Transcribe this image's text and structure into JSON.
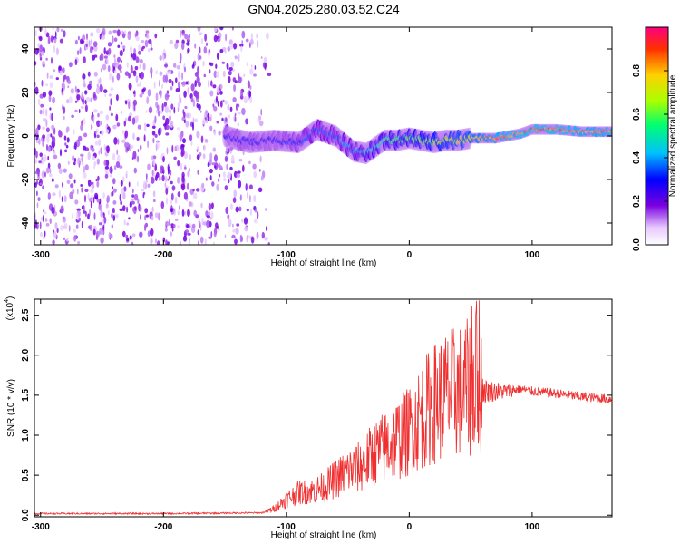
{
  "title": "GN04.2025.280.03.52.C24",
  "chart_data": [
    {
      "type": "heatmap",
      "xlabel": "Height of straight line (km)",
      "ylabel": "Frequency (Hz)",
      "xlim": [
        -305,
        165
      ],
      "ylim": [
        -50,
        50
      ],
      "x_ticks": [
        -300,
        -200,
        -100,
        0,
        100
      ],
      "y_ticks": [
        -40,
        -20,
        0,
        20,
        40
      ],
      "colorbar": {
        "label": "Normalized spectral amplitude",
        "range": [
          0.0,
          1.0
        ],
        "ticks": [
          "0.0",
          "0.2",
          "0.4",
          "0.6",
          "0.8"
        ],
        "colors": [
          "#ffffff",
          "#e6c8ff",
          "#7a00e0",
          "#0000ff",
          "#00c0ff",
          "#00ff70",
          "#aaff00",
          "#ffd000",
          "#ff3000",
          "#ff0080"
        ]
      },
      "ridge": {
        "description_free_values": true,
        "x": [
          -150,
          -130,
          -110,
          -90,
          -75,
          -60,
          -45,
          -35,
          -20,
          -10,
          0,
          10,
          20,
          30,
          40,
          50,
          60,
          70,
          80,
          90,
          100,
          120,
          140,
          165
        ],
        "frequency": [
          0,
          -3,
          -2,
          -3,
          3,
          0,
          -7,
          -8,
          -2,
          -2,
          -1,
          -2,
          -3,
          -2,
          -2,
          -1,
          -1,
          -1,
          0,
          1,
          3,
          3,
          2,
          2
        ],
        "amplitude": [
          0.3,
          0.32,
          0.3,
          0.35,
          0.4,
          0.38,
          0.45,
          0.5,
          0.55,
          0.6,
          0.62,
          0.65,
          0.7,
          0.72,
          0.75,
          0.8,
          0.85,
          0.9,
          0.92,
          0.95,
          0.97,
          0.96,
          0.9,
          0.92
        ]
      },
      "noise_region_xlim": [
        -305,
        -120
      ]
    },
    {
      "type": "line",
      "xlabel": "Height of straight line (km)",
      "ylabel": "SNR (10 * v/v)",
      "y_multiplier": "(x10^4)",
      "y_multiplier_base": "(x10",
      "y_multiplier_exp": "4",
      "xlim": [
        -305,
        165
      ],
      "ylim": [
        -0.02,
        2.7
      ],
      "x_ticks": [
        -300,
        -200,
        -100,
        0,
        100
      ],
      "y_ticks": [
        "0.0",
        "0.5",
        "1.0",
        "1.5",
        "2.0",
        "2.5"
      ],
      "line_color": "#f03030",
      "series": [
        {
          "x": [
            -305,
            -200,
            -120,
            -110,
            -100,
            -90,
            -80,
            -70,
            -60,
            -50,
            -40,
            -30,
            -20,
            -10,
            0,
            10,
            20,
            30,
            40,
            50,
            55,
            60,
            70,
            80,
            90,
            100,
            120,
            140,
            165
          ],
          "y": [
            0.02,
            0.02,
            0.03,
            0.08,
            0.2,
            0.28,
            0.3,
            0.35,
            0.45,
            0.55,
            0.6,
            0.75,
            0.85,
            0.95,
            1.05,
            1.25,
            1.4,
            1.5,
            1.55,
            1.6,
            1.7,
            1.55,
            1.55,
            1.55,
            1.58,
            1.55,
            1.52,
            1.48,
            1.45
          ]
        }
      ]
    }
  ]
}
